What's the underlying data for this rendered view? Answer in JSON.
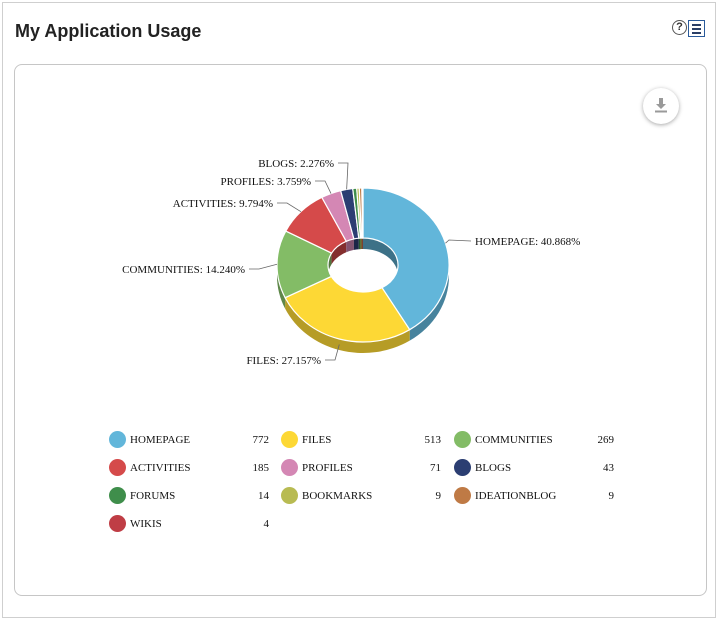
{
  "widget": {
    "title": "My Application Usage",
    "help_glyph": "?",
    "icons": {
      "help": "help-icon",
      "menu": "menu-icon",
      "download": "download-icon"
    }
  },
  "chart_data": {
    "type": "pie",
    "style": "donut-3d",
    "slices": [
      {
        "name": "HOMEPAGE",
        "value": 772,
        "percent": 40.868,
        "label": "HOMEPAGE: 40.868%",
        "color": "#62b6da"
      },
      {
        "name": "FILES",
        "value": 513,
        "percent": 27.157,
        "label": "FILES: 27.157%",
        "color": "#fdd835"
      },
      {
        "name": "COMMUNITIES",
        "value": 269,
        "percent": 14.24,
        "label": "COMMUNITIES: 14.240%",
        "color": "#83bc66"
      },
      {
        "name": "ACTIVITIES",
        "value": 185,
        "percent": 9.794,
        "label": "ACTIVITIES: 9.794%",
        "color": "#d54a4a"
      },
      {
        "name": "PROFILES",
        "value": 71,
        "percent": 3.759,
        "label": "PROFILES: 3.759%",
        "color": "#d487b4"
      },
      {
        "name": "BLOGS",
        "value": 43,
        "percent": 2.276,
        "label": "BLOGS: 2.276%",
        "color": "#2b3e72"
      },
      {
        "name": "FORUMS",
        "value": 14,
        "percent": 0.741,
        "label": "",
        "color": "#3f8e4b"
      },
      {
        "name": "BOOKMARKS",
        "value": 9,
        "percent": 0.476,
        "label": "",
        "color": "#b8bb52"
      },
      {
        "name": "IDEATIONBLOG",
        "value": 9,
        "percent": 0.476,
        "label": "",
        "color": "#bf7a45"
      },
      {
        "name": "WIKIS",
        "value": 4,
        "percent": 0.212,
        "label": "",
        "color": "#bf3d45"
      }
    ],
    "legend": [
      {
        "name": "HOMEPAGE",
        "count": "772",
        "color": "#62b6da"
      },
      {
        "name": "FILES",
        "count": "513",
        "color": "#fdd835"
      },
      {
        "name": "COMMUNITIES",
        "count": "269",
        "color": "#83bc66"
      },
      {
        "name": "ACTIVITIES",
        "count": "185",
        "color": "#d54a4a"
      },
      {
        "name": "PROFILES",
        "count": "71",
        "color": "#d487b4"
      },
      {
        "name": "BLOGS",
        "count": "43",
        "color": "#2b3e72"
      },
      {
        "name": "FORUMS",
        "count": "14",
        "color": "#3f8e4b"
      },
      {
        "name": "BOOKMARKS",
        "count": "9",
        "color": "#b8bb52"
      },
      {
        "name": "IDEATIONBLOG",
        "count": "9",
        "color": "#bf7a45"
      },
      {
        "name": "WIKIS",
        "count": "4",
        "color": "#bf3d45"
      }
    ],
    "legend_placement": "bottom"
  }
}
